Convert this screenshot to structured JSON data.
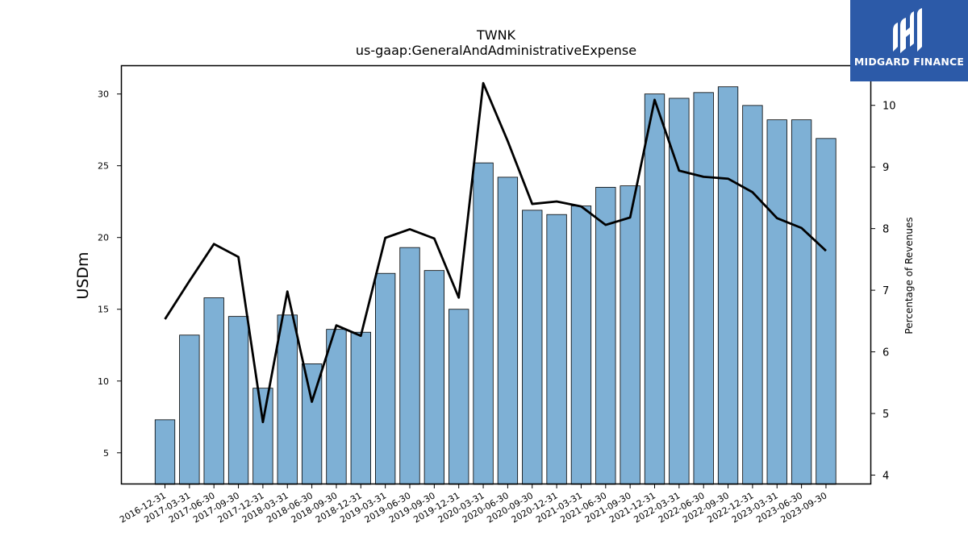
{
  "chart_data": {
    "type": "bar",
    "title": "TWNK",
    "subtitle": "us-gaap:GeneralAndAdministrativeExpense",
    "xlabel": "",
    "ylabel": "USDm",
    "y2label": "Percentage of Revenues",
    "ylim": [
      2.8,
      32
    ],
    "y2lim": [
      3.85,
      10.65
    ],
    "yticks": [
      5,
      10,
      15,
      20,
      25,
      30
    ],
    "y2ticks": [
      4,
      5,
      6,
      7,
      8,
      9,
      10
    ],
    "categories": [
      "2016-12-31",
      "2017-03-31",
      "2017-06-30",
      "2017-09-30",
      "2017-12-31",
      "2018-03-31",
      "2018-06-30",
      "2018-09-30",
      "2018-12-31",
      "2019-03-31",
      "2019-06-30",
      "2019-09-30",
      "2019-12-31",
      "2020-03-31",
      "2020-06-30",
      "2020-09-30",
      "2020-12-31",
      "2021-03-31",
      "2021-06-30",
      "2021-09-30",
      "2021-12-31",
      "2022-03-31",
      "2022-06-30",
      "2022-09-30",
      "2022-12-31",
      "2023-03-31",
      "2023-06-30",
      "2023-09-30"
    ],
    "series": [
      {
        "kind": "bar",
        "axis": "left",
        "color": "#7eb0d5",
        "values": [
          7.3,
          13.2,
          15.8,
          14.5,
          9.5,
          14.6,
          11.2,
          13.6,
          13.4,
          17.5,
          19.3,
          17.7,
          15.0,
          25.2,
          24.2,
          21.9,
          21.6,
          22.2,
          23.5,
          23.6,
          30.0,
          29.7,
          30.1,
          30.5,
          29.2,
          28.2,
          28.2,
          26.9
        ]
      },
      {
        "kind": "line",
        "axis": "right",
        "color": "#000000",
        "values": [
          6.53,
          7.15,
          7.75,
          7.54,
          4.86,
          6.98,
          5.19,
          6.43,
          6.26,
          7.85,
          7.99,
          7.84,
          6.88,
          10.36,
          9.42,
          8.4,
          8.44,
          8.36,
          8.06,
          8.18,
          10.09,
          8.94,
          8.84,
          8.81,
          8.59,
          8.17,
          8.01,
          7.64
        ]
      }
    ],
    "grid": false
  },
  "logo": {
    "text": "MIDGARD FINANCE",
    "color": "#2c5aa8"
  }
}
